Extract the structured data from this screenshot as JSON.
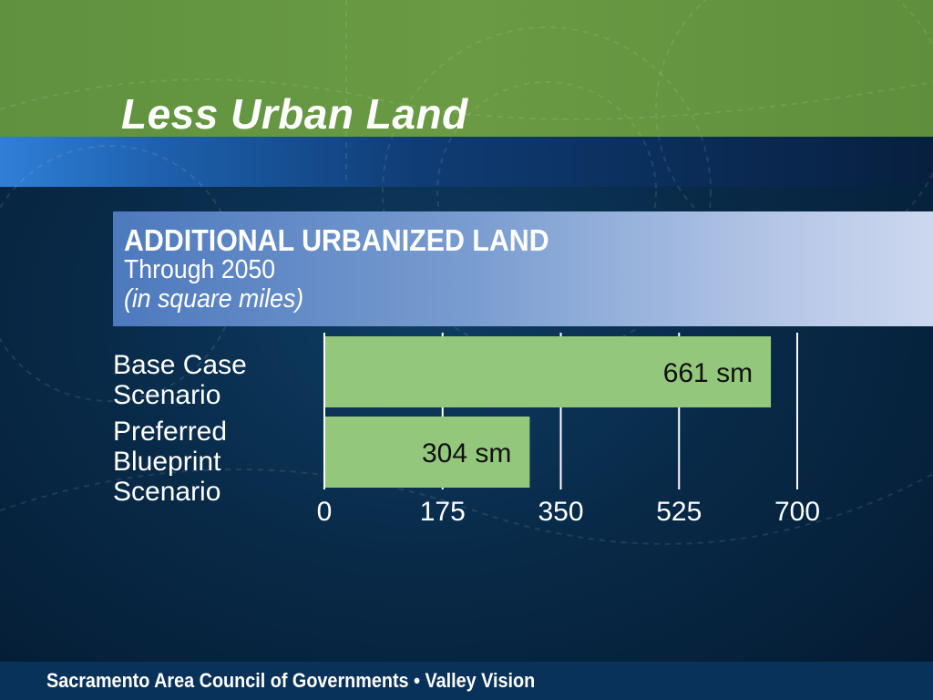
{
  "slide": {
    "title": "Less Urban Land",
    "footer": "Sacramento Area Council of Governments  •  Valley Vision"
  },
  "colors": {
    "green_band": "#6a9a43",
    "bar_fill": "#93c77c",
    "text": "#ffffff",
    "bar_label": "#111111"
  },
  "chart_data": {
    "type": "bar",
    "orientation": "horizontal",
    "title": "ADDITIONAL URBANIZED LAND",
    "subtitle": "Through 2050",
    "unit_note": "(in square miles)",
    "categories": [
      [
        "Base Case",
        "Scenario"
      ],
      [
        "Preferred",
        "Blueprint",
        "Scenario"
      ]
    ],
    "values": [
      661,
      304
    ],
    "value_labels": [
      "661 sm",
      "304 sm"
    ],
    "xlim": [
      0,
      700
    ],
    "ticks": [
      0,
      175,
      350,
      525,
      700
    ],
    "tick_labels": [
      "0",
      "175",
      "350",
      "525",
      "700"
    ],
    "grid": true
  }
}
